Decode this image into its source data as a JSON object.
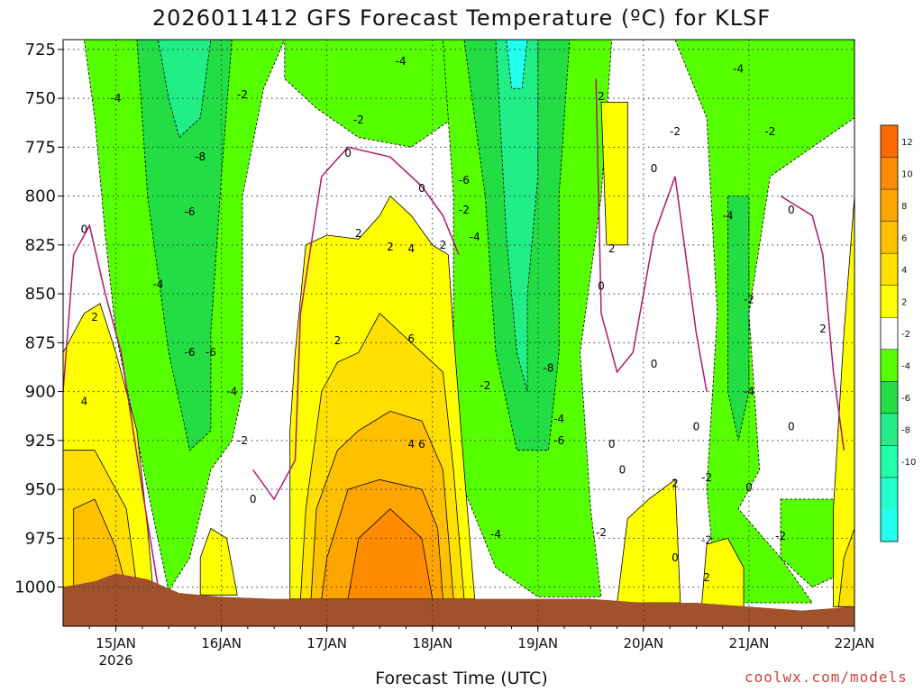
{
  "title": "2026011412 GFS Forecast Temperature (ºC) for KLSF",
  "x_axis_label": "Forecast Time (UTC)",
  "credit": "coolwx.com/models",
  "chart_data": {
    "type": "heatmap",
    "model": "GFS",
    "init": "2026011412",
    "station": "KLSF",
    "variable": "Temperature (ºC)",
    "y_axis": {
      "quantity": "Pressure (hPa)",
      "ticks": [
        725,
        750,
        775,
        800,
        825,
        850,
        875,
        900,
        925,
        950,
        975,
        1000
      ],
      "range": [
        1020,
        720
      ],
      "inverted": true
    },
    "x_axis": {
      "ticks": [
        "15JAN",
        "16JAN",
        "17JAN",
        "18JAN",
        "19JAN",
        "20JAN",
        "21JAN",
        "22JAN"
      ],
      "year_label": "2026",
      "range_days": [
        14.5,
        22.0
      ]
    },
    "grid": "dotted",
    "legend": {
      "position": "right",
      "levels": [
        "12",
        "10",
        "8",
        "6",
        "4",
        "2",
        "-2",
        "-4",
        "-6",
        "-8",
        "-10"
      ],
      "colors": [
        "#ff6a00",
        "#ff8c00",
        "#ffa500",
        "#ffc000",
        "#ffe000",
        "#ffff00",
        "#ffffff",
        "#55ff00",
        "#22dd44",
        "#22ee88",
        "#22ffaa",
        "#22ffd0",
        "#22ffee"
      ]
    },
    "surface": {
      "color": "#a0522d",
      "profile": [
        [
          14.5,
          1000
        ],
        [
          14.8,
          997
        ],
        [
          15.0,
          993
        ],
        [
          15.3,
          996
        ],
        [
          15.6,
          1003
        ],
        [
          16.0,
          1005
        ],
        [
          16.5,
          1006
        ],
        [
          17.0,
          1006
        ],
        [
          17.5,
          1006
        ],
        [
          18.0,
          1006
        ],
        [
          18.5,
          1006
        ],
        [
          19.0,
          1006
        ],
        [
          19.5,
          1006
        ],
        [
          20.0,
          1008
        ],
        [
          20.5,
          1008
        ],
        [
          21.0,
          1010
        ],
        [
          21.5,
          1012
        ],
        [
          22.0,
          1010
        ]
      ]
    },
    "features": [
      {
        "kind": "warm",
        "label": "4",
        "t0": 14.5,
        "t1": 15.3,
        "p_top": 855,
        "max": 6
      },
      {
        "kind": "warm",
        "label": "2",
        "t0": 15.8,
        "t1": 16.2,
        "p_top": 970,
        "max": 2
      },
      {
        "kind": "warm",
        "label": "6",
        "t0": 16.7,
        "t1": 18.4,
        "p_top": 800,
        "max": 12
      },
      {
        "kind": "warm",
        "label": "2",
        "t0": 19.6,
        "t1": 19.9,
        "p_top": 752,
        "max": 2
      },
      {
        "kind": "warm",
        "label": "2",
        "t0": 19.7,
        "t1": 20.4,
        "p_top": 940,
        "max": 4
      },
      {
        "kind": "warm",
        "label": "2",
        "t0": 20.5,
        "t1": 21.0,
        "p_top": 970,
        "max": 4
      },
      {
        "kind": "warm",
        "label": "2",
        "t0": 21.8,
        "t1": 22.0,
        "p_top": 800,
        "max": 4
      },
      {
        "kind": "cold",
        "label": "-8",
        "t0": 15.2,
        "t1": 16.2,
        "p_top": 725,
        "min": -10
      },
      {
        "kind": "cold",
        "label": "-8",
        "t0": 18.3,
        "t1": 19.3,
        "p_top": 725,
        "min": -10
      }
    ],
    "contour_labels": [
      {
        "t": 15.0,
        "p": 750,
        "v": "-4"
      },
      {
        "t": 15.8,
        "p": 780,
        "v": "-8"
      },
      {
        "t": 15.7,
        "p": 808,
        "v": "-6"
      },
      {
        "t": 15.4,
        "p": 845,
        "v": "-4"
      },
      {
        "t": 15.7,
        "p": 880,
        "v": "-6"
      },
      {
        "t": 15.9,
        "p": 880,
        "v": "-6"
      },
      {
        "t": 16.1,
        "p": 900,
        "v": "-4"
      },
      {
        "t": 16.2,
        "p": 748,
        "v": "-2"
      },
      {
        "t": 16.2,
        "p": 925,
        "v": "-2"
      },
      {
        "t": 16.3,
        "p": 955,
        "v": "0"
      },
      {
        "t": 14.8,
        "p": 862,
        "v": "2"
      },
      {
        "t": 14.7,
        "p": 905,
        "v": "4"
      },
      {
        "t": 14.7,
        "p": 817,
        "v": "0"
      },
      {
        "t": 17.2,
        "p": 778,
        "v": "0"
      },
      {
        "t": 17.3,
        "p": 819,
        "v": "2"
      },
      {
        "t": 17.1,
        "p": 874,
        "v": "2"
      },
      {
        "t": 17.6,
        "p": 826,
        "v": "2"
      },
      {
        "t": 17.8,
        "p": 827,
        "v": "4"
      },
      {
        "t": 18.1,
        "p": 825,
        "v": "2"
      },
      {
        "t": 17.8,
        "p": 873,
        "v": "6"
      },
      {
        "t": 17.8,
        "p": 927,
        "v": "4"
      },
      {
        "t": 17.9,
        "p": 927,
        "v": "6"
      },
      {
        "t": 17.9,
        "p": 796,
        "v": "0"
      },
      {
        "t": 17.7,
        "p": 731,
        "v": "-4"
      },
      {
        "t": 17.3,
        "p": 761,
        "v": "-2"
      },
      {
        "t": 18.3,
        "p": 792,
        "v": "-6"
      },
      {
        "t": 18.3,
        "p": 807,
        "v": "-2"
      },
      {
        "t": 18.4,
        "p": 821,
        "v": "-4"
      },
      {
        "t": 18.5,
        "p": 897,
        "v": "-2"
      },
      {
        "t": 19.1,
        "p": 888,
        "v": "-8"
      },
      {
        "t": 19.2,
        "p": 914,
        "v": "-4"
      },
      {
        "t": 19.2,
        "p": 925,
        "v": "-6"
      },
      {
        "t": 18.6,
        "p": 973,
        "v": "-4"
      },
      {
        "t": 19.6,
        "p": 972,
        "v": "-2"
      },
      {
        "t": 19.6,
        "p": 749,
        "v": "2"
      },
      {
        "t": 19.7,
        "p": 827,
        "v": "2"
      },
      {
        "t": 19.6,
        "p": 846,
        "v": "0"
      },
      {
        "t": 20.1,
        "p": 786,
        "v": "0"
      },
      {
        "t": 20.1,
        "p": 886,
        "v": "0"
      },
      {
        "t": 19.7,
        "p": 927,
        "v": "0"
      },
      {
        "t": 19.8,
        "p": 940,
        "v": "0"
      },
      {
        "t": 20.3,
        "p": 947,
        "v": "2"
      },
      {
        "t": 20.3,
        "p": 985,
        "v": "0"
      },
      {
        "t": 20.3,
        "p": 767,
        "v": "-2"
      },
      {
        "t": 20.5,
        "p": 918,
        "v": "0"
      },
      {
        "t": 20.6,
        "p": 944,
        "v": "-2"
      },
      {
        "t": 20.6,
        "p": 976,
        "v": "-2"
      },
      {
        "t": 20.6,
        "p": 995,
        "v": "2"
      },
      {
        "t": 20.9,
        "p": 735,
        "v": "-4"
      },
      {
        "t": 20.8,
        "p": 810,
        "v": "-4"
      },
      {
        "t": 21.0,
        "p": 853,
        "v": "-2"
      },
      {
        "t": 21.0,
        "p": 900,
        "v": "-4"
      },
      {
        "t": 21.0,
        "p": 949,
        "v": "0"
      },
      {
        "t": 21.2,
        "p": 767,
        "v": "-2"
      },
      {
        "t": 21.4,
        "p": 807,
        "v": "0"
      },
      {
        "t": 21.4,
        "p": 918,
        "v": "0"
      },
      {
        "t": 21.3,
        "p": 974,
        "v": "-2"
      },
      {
        "t": 21.7,
        "p": 868,
        "v": "2"
      }
    ]
  }
}
